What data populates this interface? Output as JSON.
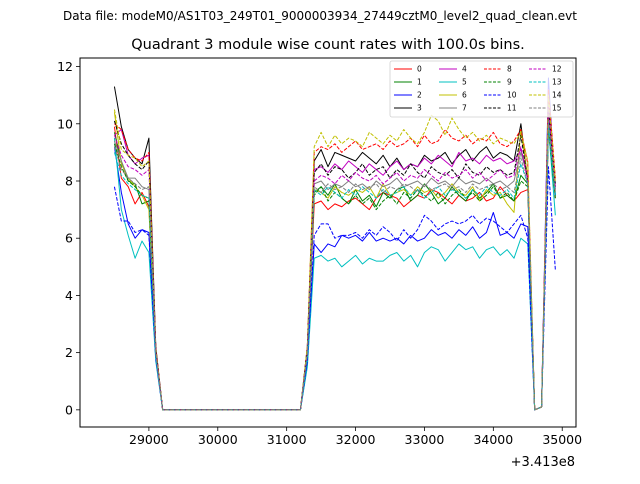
{
  "figure": {
    "suptitle": "Data file: modeM0/AS1T03_249T01_9000003934_27449cztM0_level2_quad_clean.evt",
    "title": "Quadrant 3 module wise count rates with 100.0s bins.",
    "offset_label": "+3.413e8"
  },
  "chart_data": {
    "type": "line",
    "title": "Quadrant 3 module wise count rates with 100.0s bins.",
    "xlabel": "",
    "ylabel": "",
    "x_offset": 341300000,
    "xlim": [
      28000,
      35200
    ],
    "ylim": [
      -0.6,
      12.3
    ],
    "xticks": [
      29000,
      30000,
      31000,
      32000,
      33000,
      34000,
      35000
    ],
    "xtick_labels": [
      "29000",
      "30000",
      "31000",
      "32000",
      "33000",
      "34000",
      "35000"
    ],
    "yticks": [
      0,
      2,
      4,
      6,
      8,
      10,
      12
    ],
    "ytick_labels": [
      "0",
      "2",
      "4",
      "6",
      "8",
      "10",
      "12"
    ],
    "grid": false,
    "legend_position": "top-right",
    "legend_columns": 4,
    "x": [
      28500,
      28600,
      28700,
      28800,
      28900,
      29000,
      29100,
      29200,
      29300,
      29400,
      29500,
      29600,
      29700,
      29800,
      29900,
      30000,
      30100,
      30200,
      30300,
      30400,
      30500,
      30600,
      30700,
      30800,
      30900,
      31000,
      31100,
      31200,
      31300,
      31400,
      31500,
      31600,
      31700,
      31800,
      31900,
      32000,
      32100,
      32200,
      32300,
      32400,
      32500,
      32600,
      32700,
      32800,
      32900,
      33000,
      33100,
      33200,
      33300,
      33400,
      33500,
      33600,
      33700,
      33800,
      33900,
      34000,
      34100,
      34200,
      34300,
      34400,
      34500,
      34600,
      34700,
      34800,
      34900
    ],
    "series": [
      {
        "name": "0",
        "color": "#ff0000",
        "dash": "solid",
        "values": [
          9.9,
          8.1,
          7.8,
          7.2,
          7.6,
          7.1,
          2.1,
          0.0,
          0.0,
          0.0,
          0.0,
          0.0,
          0.0,
          0.0,
          0.0,
          0.0,
          0.0,
          0.0,
          0.0,
          0.0,
          0.0,
          0.0,
          0.0,
          0.0,
          0.0,
          0.0,
          0.0,
          0.0,
          1.9,
          7.2,
          7.3,
          7.0,
          7.2,
          7.1,
          7.3,
          7.4,
          7.2,
          7.0,
          7.4,
          7.6,
          7.5,
          7.4,
          7.1,
          7.3,
          7.5,
          7.4,
          7.7,
          7.6,
          7.4,
          7.2,
          7.5,
          7.3,
          7.4,
          7.6,
          7.3,
          7.4,
          7.8,
          7.5,
          7.3,
          7.6,
          7.7,
          0.0,
          0.1,
          9.8,
          7.4
        ]
      },
      {
        "name": "1",
        "color": "#008000",
        "dash": "solid",
        "values": [
          9.7,
          8.7,
          8.0,
          7.9,
          7.2,
          7.3,
          2.0,
          0.0,
          0.0,
          0.0,
          0.0,
          0.0,
          0.0,
          0.0,
          0.0,
          0.0,
          0.0,
          0.0,
          0.0,
          0.0,
          0.0,
          0.0,
          0.0,
          0.0,
          0.0,
          0.0,
          0.0,
          0.0,
          2.0,
          7.6,
          7.8,
          7.5,
          7.9,
          7.4,
          7.2,
          7.7,
          7.3,
          7.5,
          7.1,
          7.6,
          7.4,
          7.7,
          7.8,
          7.3,
          7.5,
          7.9,
          7.6,
          7.2,
          7.4,
          7.8,
          7.5,
          7.3,
          7.7,
          7.4,
          7.6,
          7.9,
          7.4,
          7.5,
          7.3,
          8.2,
          7.9,
          0.0,
          0.1,
          10.0,
          7.5
        ]
      },
      {
        "name": "2",
        "color": "#0000ff",
        "dash": "solid",
        "values": [
          9.2,
          7.6,
          6.5,
          6.0,
          6.3,
          6.2,
          1.8,
          0.0,
          0.0,
          0.0,
          0.0,
          0.0,
          0.0,
          0.0,
          0.0,
          0.0,
          0.0,
          0.0,
          0.0,
          0.0,
          0.0,
          0.0,
          0.0,
          0.0,
          0.0,
          0.0,
          0.0,
          0.0,
          1.6,
          5.8,
          5.5,
          5.8,
          5.7,
          6.1,
          6.0,
          6.1,
          5.9,
          6.2,
          5.9,
          6.0,
          5.9,
          6.0,
          5.8,
          6.1,
          5.9,
          6.0,
          6.3,
          6.1,
          6.2,
          6.0,
          6.3,
          6.1,
          6.4,
          6.0,
          6.2,
          6.9,
          6.1,
          6.2,
          6.0,
          6.5,
          6.4,
          0.0,
          0.1,
          11.6,
          7.5
        ]
      },
      {
        "name": "3",
        "color": "#000000",
        "dash": "solid",
        "values": [
          11.3,
          9.9,
          9.1,
          8.8,
          8.6,
          9.5,
          2.2,
          0.0,
          0.0,
          0.0,
          0.0,
          0.0,
          0.0,
          0.0,
          0.0,
          0.0,
          0.0,
          0.0,
          0.0,
          0.0,
          0.0,
          0.0,
          0.0,
          0.0,
          0.0,
          0.0,
          0.0,
          0.0,
          2.2,
          8.7,
          9.1,
          8.5,
          9.0,
          8.9,
          8.8,
          8.7,
          9.0,
          8.8,
          8.6,
          8.9,
          8.5,
          8.8,
          8.4,
          8.6,
          8.5,
          8.9,
          8.7,
          8.8,
          9.0,
          8.6,
          8.9,
          9.1,
          8.7,
          9.0,
          9.2,
          8.8,
          9.0,
          8.9,
          8.7,
          10.0,
          8.0,
          0.0,
          0.1,
          10.8,
          7.9
        ]
      },
      {
        "name": "4",
        "color": "#c000c0",
        "dash": "solid",
        "values": [
          9.6,
          9.8,
          8.9,
          8.6,
          8.8,
          8.9,
          2.1,
          0.0,
          0.0,
          0.0,
          0.0,
          0.0,
          0.0,
          0.0,
          0.0,
          0.0,
          0.0,
          0.0,
          0.0,
          0.0,
          0.0,
          0.0,
          0.0,
          0.0,
          0.0,
          0.0,
          0.0,
          0.0,
          2.1,
          8.4,
          8.5,
          8.3,
          8.6,
          8.4,
          8.7,
          8.5,
          8.3,
          8.6,
          8.4,
          8.2,
          8.5,
          8.7,
          8.4,
          8.6,
          8.5,
          8.8,
          8.6,
          8.9,
          8.7,
          8.5,
          9.0,
          8.7,
          8.8,
          8.6,
          8.9,
          8.7,
          8.8,
          8.6,
          8.7,
          9.1,
          8.2,
          0.0,
          0.1,
          11.2,
          7.7
        ]
      },
      {
        "name": "5",
        "color": "#00c0c0",
        "dash": "solid",
        "values": [
          9.5,
          7.0,
          6.1,
          5.3,
          5.9,
          5.5,
          1.7,
          0.0,
          0.0,
          0.0,
          0.0,
          0.0,
          0.0,
          0.0,
          0.0,
          0.0,
          0.0,
          0.0,
          0.0,
          0.0,
          0.0,
          0.0,
          0.0,
          0.0,
          0.0,
          0.0,
          0.0,
          0.0,
          1.5,
          5.3,
          5.4,
          5.2,
          5.3,
          5.0,
          5.2,
          5.4,
          5.1,
          5.3,
          5.2,
          5.2,
          5.4,
          5.5,
          5.2,
          5.4,
          5.0,
          5.5,
          5.7,
          5.6,
          5.2,
          5.5,
          5.8,
          5.6,
          5.7,
          5.3,
          5.6,
          5.7,
          5.4,
          5.6,
          5.3,
          6.0,
          5.8,
          0.0,
          0.1,
          9.9,
          6.8
        ]
      },
      {
        "name": "6",
        "color": "#c0c000",
        "dash": "solid",
        "values": [
          10.4,
          8.6,
          8.1,
          7.8,
          7.5,
          7.0,
          2.0,
          0.0,
          0.0,
          0.0,
          0.0,
          0.0,
          0.0,
          0.0,
          0.0,
          0.0,
          0.0,
          0.0,
          0.0,
          0.0,
          0.0,
          0.0,
          0.0,
          0.0,
          0.0,
          0.0,
          0.0,
          0.0,
          2.0,
          7.7,
          7.6,
          7.4,
          7.8,
          7.6,
          7.5,
          7.7,
          7.6,
          7.8,
          7.4,
          7.9,
          7.5,
          7.6,
          7.7,
          7.5,
          7.8,
          7.6,
          7.7,
          7.4,
          7.6,
          7.9,
          7.6,
          7.5,
          7.8,
          7.3,
          7.7,
          7.5,
          7.6,
          7.2,
          6.9,
          9.8,
          8.1,
          0.0,
          0.1,
          10.4,
          7.6
        ]
      },
      {
        "name": "7",
        "color": "#808080",
        "dash": "solid",
        "values": [
          9.4,
          8.7,
          8.1,
          8.1,
          7.8,
          7.7,
          2.0,
          0.0,
          0.0,
          0.0,
          0.0,
          0.0,
          0.0,
          0.0,
          0.0,
          0.0,
          0.0,
          0.0,
          0.0,
          0.0,
          0.0,
          0.0,
          0.0,
          0.0,
          0.0,
          0.0,
          0.0,
          0.0,
          2.0,
          7.9,
          8.0,
          7.7,
          7.9,
          7.8,
          8.0,
          7.8,
          7.9,
          7.7,
          8.0,
          7.8,
          7.9,
          8.1,
          7.8,
          7.9,
          8.0,
          7.8,
          8.1,
          7.9,
          8.0,
          7.8,
          8.1,
          7.9,
          8.0,
          7.9,
          8.1,
          7.9,
          8.0,
          7.8,
          8.0,
          9.0,
          8.1,
          0.0,
          0.1,
          10.2,
          7.7
        ]
      },
      {
        "name": "8",
        "color": "#ff0000",
        "dash": "dashed",
        "values": [
          10.0,
          9.8,
          9.1,
          8.8,
          8.7,
          9.0,
          2.2,
          0.0,
          0.0,
          0.0,
          0.0,
          0.0,
          0.0,
          0.0,
          0.0,
          0.0,
          0.0,
          0.0,
          0.0,
          0.0,
          0.0,
          0.0,
          0.0,
          0.0,
          0.0,
          0.0,
          0.0,
          0.0,
          2.2,
          9.0,
          9.2,
          9.1,
          9.3,
          9.0,
          9.2,
          9.4,
          9.1,
          9.2,
          9.3,
          9.1,
          9.4,
          9.2,
          9.3,
          9.5,
          9.2,
          9.6,
          9.3,
          9.4,
          9.8,
          9.5,
          9.4,
          9.6,
          9.3,
          9.5,
          9.4,
          9.7,
          9.3,
          9.2,
          9.4,
          9.8,
          8.6,
          0.0,
          0.1,
          11.2,
          8.1
        ]
      },
      {
        "name": "9",
        "color": "#008000",
        "dash": "dashed",
        "values": [
          9.3,
          8.5,
          8.0,
          7.8,
          7.5,
          7.4,
          2.0,
          0.0,
          0.0,
          0.0,
          0.0,
          0.0,
          0.0,
          0.0,
          0.0,
          0.0,
          0.0,
          0.0,
          0.0,
          0.0,
          0.0,
          0.0,
          0.0,
          0.0,
          0.0,
          0.0,
          0.0,
          0.0,
          1.9,
          7.5,
          7.8,
          7.3,
          7.6,
          7.4,
          7.2,
          7.5,
          7.2,
          7.4,
          7.0,
          7.3,
          7.5,
          7.2,
          7.6,
          7.4,
          7.7,
          7.5,
          7.3,
          7.6,
          7.2,
          7.5,
          7.7,
          7.4,
          7.6,
          7.3,
          7.5,
          7.8,
          7.4,
          7.6,
          7.3,
          8.0,
          7.8,
          0.0,
          0.1,
          9.9,
          7.4
        ]
      },
      {
        "name": "10",
        "color": "#0000ff",
        "dash": "dashed",
        "values": [
          7.8,
          6.6,
          6.6,
          6.2,
          6.3,
          6.1,
          1.8,
          0.0,
          0.0,
          0.0,
          0.0,
          0.0,
          0.0,
          0.0,
          0.0,
          0.0,
          0.0,
          0.0,
          0.0,
          0.0,
          0.0,
          0.0,
          0.0,
          0.0,
          0.0,
          0.0,
          0.0,
          0.0,
          1.7,
          6.1,
          6.5,
          6.5,
          6.0,
          6.1,
          6.1,
          6.2,
          6.0,
          6.3,
          6.1,
          6.4,
          6.2,
          5.9,
          6.3,
          6.0,
          6.3,
          6.8,
          6.6,
          6.3,
          6.5,
          6.6,
          6.5,
          6.6,
          6.8,
          6.5,
          6.7,
          6.6,
          6.4,
          6.2,
          6.5,
          6.8,
          6.0,
          0.0,
          0.1,
          8.5,
          4.9
        ]
      },
      {
        "name": "11",
        "color": "#000000",
        "dash": "dashed",
        "values": [
          10.1,
          9.3,
          8.9,
          8.6,
          8.4,
          8.7,
          2.1,
          0.0,
          0.0,
          0.0,
          0.0,
          0.0,
          0.0,
          0.0,
          0.0,
          0.0,
          0.0,
          0.0,
          0.0,
          0.0,
          0.0,
          0.0,
          0.0,
          0.0,
          0.0,
          0.0,
          0.0,
          0.0,
          2.1,
          8.3,
          8.6,
          8.2,
          8.5,
          8.4,
          8.1,
          8.3,
          8.6,
          8.2,
          8.4,
          8.5,
          8.1,
          8.4,
          8.2,
          8.6,
          8.3,
          8.1,
          8.5,
          8.3,
          8.2,
          8.4,
          8.1,
          8.6,
          8.3,
          8.2,
          8.5,
          8.3,
          8.4,
          8.2,
          8.3,
          9.6,
          8.0,
          0.0,
          0.1,
          10.5,
          7.8
        ]
      },
      {
        "name": "12",
        "color": "#c000c0",
        "dash": "dashed",
        "values": [
          9.6,
          8.9,
          8.5,
          8.4,
          8.2,
          8.4,
          2.0,
          0.0,
          0.0,
          0.0,
          0.0,
          0.0,
          0.0,
          0.0,
          0.0,
          0.0,
          0.0,
          0.0,
          0.0,
          0.0,
          0.0,
          0.0,
          0.0,
          0.0,
          0.0,
          0.0,
          0.0,
          0.0,
          2.0,
          8.0,
          8.2,
          8.1,
          7.9,
          8.2,
          8.0,
          8.3,
          8.1,
          8.0,
          8.2,
          7.9,
          8.1,
          8.3,
          8.0,
          8.2,
          8.1,
          8.4,
          8.2,
          8.0,
          8.3,
          8.1,
          8.2,
          8.4,
          8.1,
          8.3,
          8.0,
          8.2,
          8.4,
          8.1,
          8.2,
          9.2,
          8.0,
          0.0,
          0.1,
          10.6,
          7.8
        ]
      },
      {
        "name": "13",
        "color": "#00c0c0",
        "dash": "dashed",
        "values": [
          9.0,
          8.2,
          7.9,
          7.7,
          7.5,
          7.4,
          1.9,
          0.0,
          0.0,
          0.0,
          0.0,
          0.0,
          0.0,
          0.0,
          0.0,
          0.0,
          0.0,
          0.0,
          0.0,
          0.0,
          0.0,
          0.0,
          0.0,
          0.0,
          0.0,
          0.0,
          0.0,
          0.0,
          1.9,
          7.7,
          7.5,
          7.8,
          7.6,
          7.4,
          7.7,
          7.5,
          7.8,
          7.6,
          7.4,
          7.7,
          7.5,
          7.6,
          7.8,
          7.5,
          7.7,
          7.4,
          7.6,
          7.8,
          7.5,
          7.7,
          7.6,
          7.4,
          7.7,
          7.5,
          7.8,
          7.6,
          7.5,
          7.7,
          7.4,
          8.6,
          7.9,
          0.0,
          0.1,
          10.0,
          7.5
        ]
      },
      {
        "name": "14",
        "color": "#c0c000",
        "dash": "dashed",
        "values": [
          10.5,
          9.1,
          8.9,
          8.8,
          8.5,
          8.7,
          2.1,
          0.0,
          0.0,
          0.0,
          0.0,
          0.0,
          0.0,
          0.0,
          0.0,
          0.0,
          0.0,
          0.0,
          0.0,
          0.0,
          0.0,
          0.0,
          0.0,
          0.0,
          0.0,
          0.0,
          0.0,
          0.0,
          2.2,
          9.2,
          9.7,
          9.2,
          9.6,
          9.3,
          9.5,
          9.4,
          9.2,
          9.7,
          9.5,
          9.3,
          9.6,
          9.4,
          9.8,
          9.5,
          9.3,
          9.7,
          10.3,
          10.1,
          9.6,
          10.2,
          9.8,
          9.5,
          9.7,
          9.4,
          9.6,
          9.3,
          9.5,
          9.4,
          9.3,
          9.7,
          8.7,
          0.0,
          0.1,
          11.0,
          8.0
        ]
      },
      {
        "name": "15",
        "color": "#808080",
        "dash": "dashed",
        "values": [
          9.2,
          8.4,
          8.1,
          7.9,
          7.7,
          7.8,
          2.0,
          0.0,
          0.0,
          0.0,
          0.0,
          0.0,
          0.0,
          0.0,
          0.0,
          0.0,
          0.0,
          0.0,
          0.0,
          0.0,
          0.0,
          0.0,
          0.0,
          0.0,
          0.0,
          0.0,
          0.0,
          0.0,
          2.0,
          7.8,
          7.6,
          7.9,
          7.7,
          7.8,
          7.6,
          7.9,
          7.7,
          7.8,
          7.9,
          7.6,
          7.8,
          7.7,
          7.9,
          7.8,
          7.6,
          7.9,
          7.7,
          7.8,
          7.9,
          7.7,
          7.8,
          7.6,
          7.9,
          7.7,
          7.8,
          7.9,
          7.7,
          7.8,
          7.6,
          8.8,
          7.9,
          0.0,
          0.1,
          10.1,
          7.6
        ]
      }
    ]
  }
}
